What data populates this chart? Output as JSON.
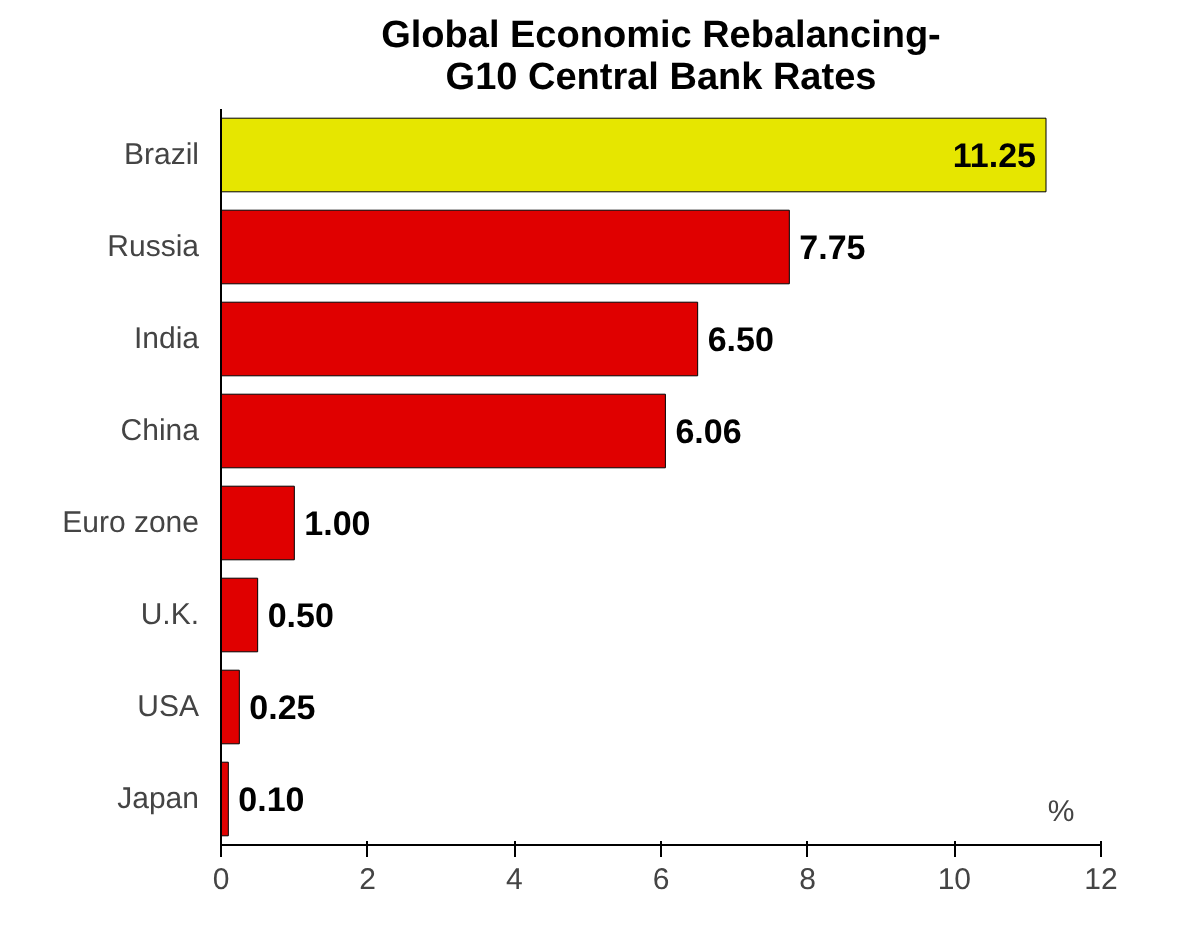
{
  "chart_data": {
    "type": "bar",
    "orientation": "horizontal",
    "title": "Global Economic Rebalancing-\nG10 Central Bank Rates",
    "xlabel": "%",
    "categories": [
      "Brazil",
      "Russia",
      "India",
      "China",
      "Euro zone",
      "U.K.",
      "USA",
      "Japan"
    ],
    "values": [
      11.25,
      7.75,
      6.5,
      6.06,
      1.0,
      0.5,
      0.25,
      0.1
    ],
    "value_labels": [
      "11.25",
      "7.75",
      "6.50",
      "6.06",
      "1.00",
      "0.50",
      "0.25",
      "0.10"
    ],
    "colors": [
      "#e6e600",
      "#e00000",
      "#e00000",
      "#e00000",
      "#e00000",
      "#e00000",
      "#e00000",
      "#e00000"
    ],
    "xlim": [
      0,
      12
    ],
    "xticks": [
      0,
      2,
      4,
      6,
      8,
      10,
      12
    ],
    "grid": false
  }
}
